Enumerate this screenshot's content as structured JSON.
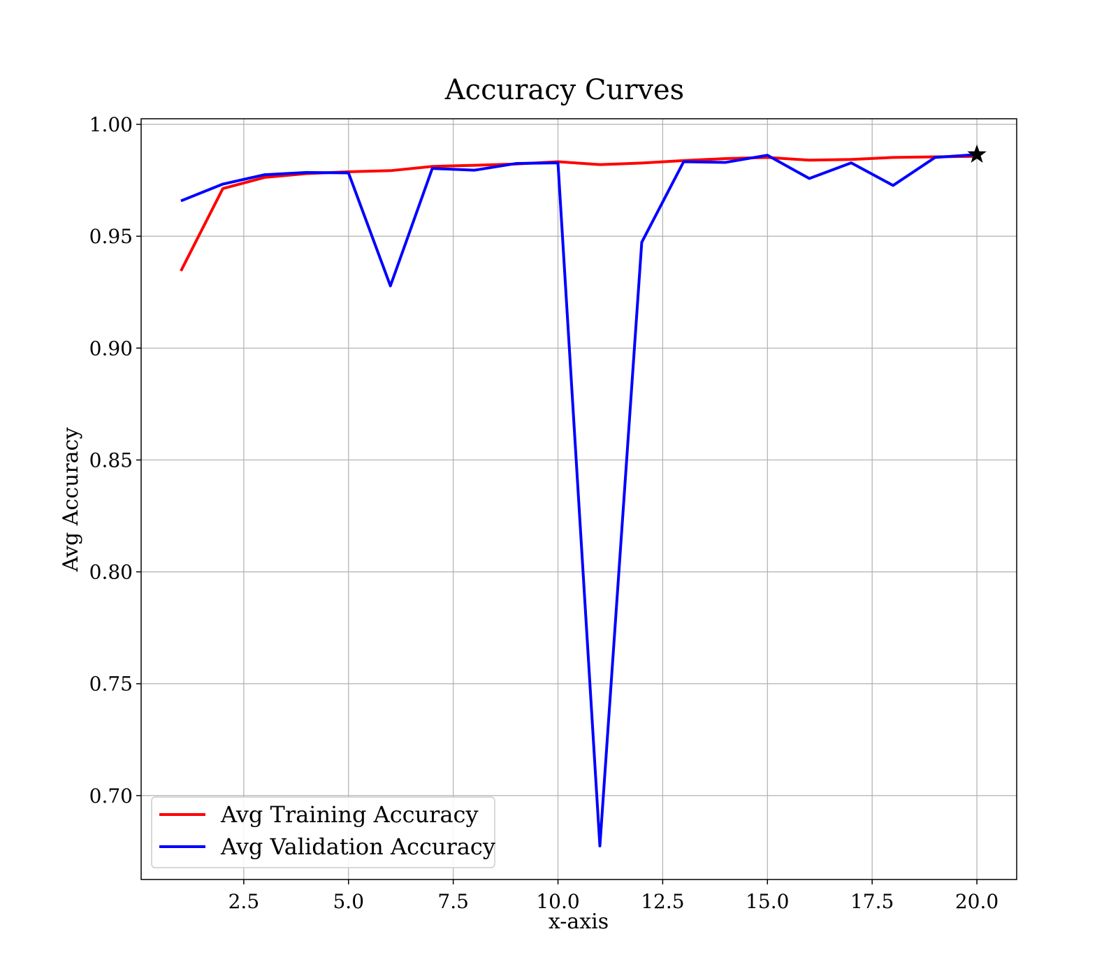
{
  "chart_data": {
    "type": "line",
    "title": "Accuracy Curves",
    "xlabel": "x-axis",
    "ylabel": "Avg Accuracy",
    "xlim": [
      0.05,
      20.95
    ],
    "ylim": [
      0.6625,
      1.0025
    ],
    "grid": true,
    "legend_position": "lower-left",
    "x_ticks": [
      "2.5",
      "5.0",
      "7.5",
      "10.0",
      "12.5",
      "15.0",
      "17.5",
      "20.0"
    ],
    "y_ticks": [
      "0.70",
      "0.75",
      "0.80",
      "0.85",
      "0.90",
      "0.95",
      "1.00"
    ],
    "x": [
      1,
      2,
      3,
      4,
      5,
      6,
      7,
      8,
      9,
      10,
      11,
      12,
      13,
      14,
      15,
      16,
      17,
      18,
      19,
      20
    ],
    "series": [
      {
        "name": "Avg Training Accuracy",
        "color": "#ff0000",
        "values": [
          0.9345,
          0.9713,
          0.9763,
          0.978,
          0.9788,
          0.9793,
          0.9812,
          0.9817,
          0.9823,
          0.9833,
          0.982,
          0.9827,
          0.9838,
          0.9847,
          0.9852,
          0.984,
          0.9843,
          0.9852,
          0.9855,
          0.9857
        ]
      },
      {
        "name": "Avg Validation Accuracy",
        "color": "#0000ff",
        "values": [
          0.9658,
          0.9733,
          0.9775,
          0.9785,
          0.9783,
          0.9278,
          0.9803,
          0.9795,
          0.9825,
          0.9828,
          0.6775,
          0.9473,
          0.9833,
          0.983,
          0.9862,
          0.9758,
          0.9828,
          0.9727,
          0.9852,
          0.9865
        ]
      }
    ],
    "markers": [
      {
        "x": 20,
        "y": 0.9865,
        "shape": "star",
        "color": "#000000"
      }
    ]
  }
}
